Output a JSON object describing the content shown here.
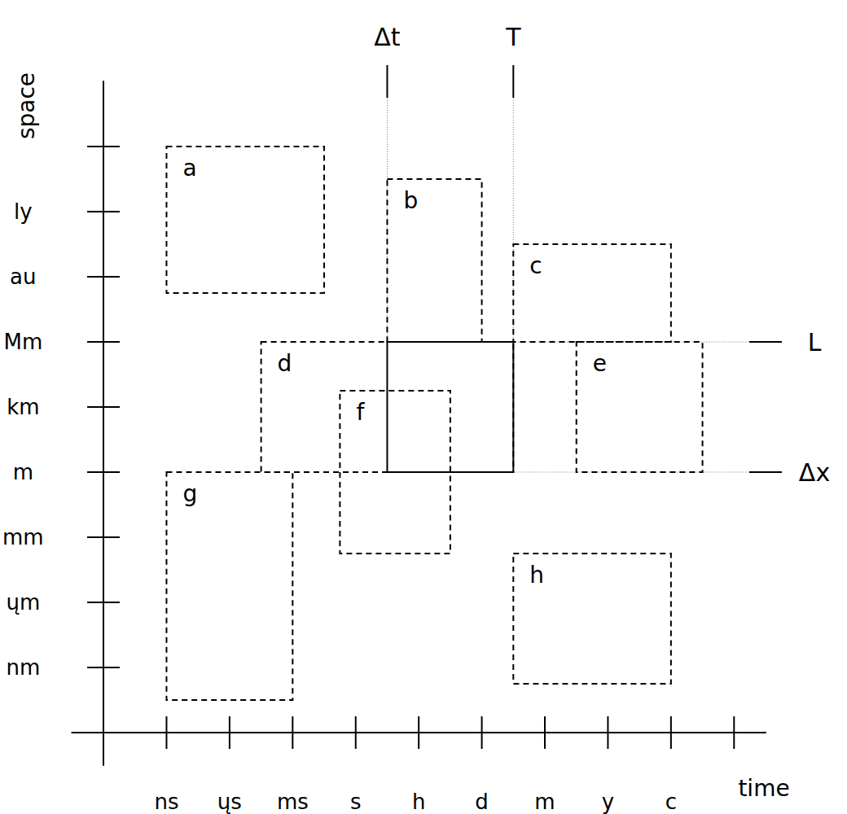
{
  "chart_data": {
    "type": "rectangle",
    "xlabel": "time",
    "ylabel": "space",
    "xlim": [
      -0.5,
      10.5
    ],
    "ylim": [
      -0.5,
      10
    ],
    "xticks": [
      {
        "value": 1,
        "label": "ns"
      },
      {
        "value": 2,
        "label": "ųs"
      },
      {
        "value": 3,
        "label": "ms"
      },
      {
        "value": 4,
        "label": "s"
      },
      {
        "value": 5,
        "label": "h"
      },
      {
        "value": 6,
        "label": "d"
      },
      {
        "value": 7,
        "label": "m"
      },
      {
        "value": 8,
        "label": "y"
      },
      {
        "value": 9,
        "label": "c"
      },
      {
        "value": 10,
        "label": null
      }
    ],
    "yticks": [
      {
        "value": 1,
        "label": "nm"
      },
      {
        "value": 2,
        "label": "ųm"
      },
      {
        "value": 3,
        "label": "mm"
      },
      {
        "value": 4,
        "label": "m"
      },
      {
        "value": 5,
        "label": "km"
      },
      {
        "value": 6,
        "label": "Mm"
      },
      {
        "value": 7,
        "label": "au"
      },
      {
        "value": 8,
        "label": "ly"
      },
      {
        "value": 9,
        "label": null
      }
    ],
    "grid": false,
    "boxes": [
      {
        "label": "a",
        "x": [
          1,
          3.5
        ],
        "y": [
          6.75,
          9
        ],
        "line_style": "dashed"
      },
      {
        "label": "b",
        "x": [
          4.5,
          6
        ],
        "y": [
          6,
          8.5
        ],
        "line_style": "dashed"
      },
      {
        "label": "c",
        "x": [
          6.5,
          9
        ],
        "y": [
          6,
          7.5
        ],
        "line_style": "dashed"
      },
      {
        "label": "d",
        "x": [
          2.5,
          6.5
        ],
        "y": [
          4,
          6
        ],
        "line_style": "dashed"
      },
      {
        "label": "e",
        "x": [
          7.5,
          9.5
        ],
        "y": [
          4,
          6
        ],
        "line_style": "dashed"
      },
      {
        "label": "f",
        "x": [
          3.75,
          5.5
        ],
        "y": [
          2.75,
          5.25
        ],
        "line_style": "dashed"
      },
      {
        "label": "g",
        "x": [
          1,
          3
        ],
        "y": [
          0.5,
          4
        ],
        "line_style": "dashed"
      },
      {
        "label": "h",
        "x": [
          6.5,
          9
        ],
        "y": [
          0.75,
          2.75
        ],
        "line_style": "dashed"
      },
      {
        "x": [
          4.5,
          6.5
        ],
        "y": [
          4,
          6
        ],
        "line_style": "solid"
      }
    ],
    "markers": [
      {
        "label": "Δt",
        "axis": "x",
        "value": 4.5
      },
      {
        "label": "T",
        "axis": "x",
        "value": 6.5
      },
      {
        "label": "L",
        "axis": "y",
        "value": 6
      },
      {
        "label": "Δx",
        "axis": "y",
        "value": 4
      }
    ]
  }
}
